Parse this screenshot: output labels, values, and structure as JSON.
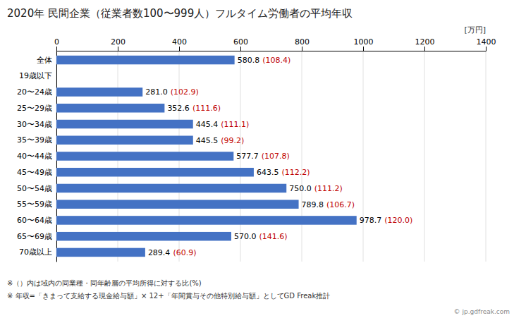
{
  "chart_data": {
    "type": "bar",
    "orientation": "horizontal",
    "title": "2020年 民間企業（従業者数100〜999人）フルタイム労働者の平均年収",
    "categories": [
      "全体",
      "19歳以下",
      "20〜24歳",
      "25〜29歳",
      "30〜34歳",
      "35〜39歳",
      "40〜44歳",
      "45〜49歳",
      "50〜54歳",
      "55〜59歳",
      "60〜64歳",
      "65〜69歳",
      "70歳以上"
    ],
    "values": [
      580.8,
      0,
      281.0,
      352.6,
      445.4,
      445.5,
      577.7,
      643.5,
      750.0,
      789.8,
      978.7,
      570.0,
      289.4
    ],
    "value_labels": [
      "580.8",
      null,
      "281.0",
      "352.6",
      "445.4",
      "445.5",
      "577.7",
      "643.5",
      "750.0",
      "789.8",
      "978.7",
      "570.0",
      "289.4"
    ],
    "ratio_labels": [
      "(108.4)",
      null,
      "(102.9)",
      "(111.6)",
      "(111.1)",
      "(99.2)",
      "(107.8)",
      "(112.2)",
      "(111.2)",
      "(106.7)",
      "(120.0)",
      "(141.6)",
      "(60.9)"
    ],
    "data_labels": true,
    "color": "#4472C4",
    "xlim": [
      0,
      1400
    ],
    "xticks": [
      0,
      200,
      400,
      600,
      800,
      1000,
      1200,
      1400
    ],
    "x_label": "[万円]",
    "grid": true,
    "notes": [
      "※（）内は域内の同業種・同年齢層の平均所得に対する比(%)",
      "※ 年収=「きまって支給する現金給与額」× 12+「年間賞与その他特別給与額」としてGD Freak推計"
    ],
    "source": "© jp.gdfreak.com"
  }
}
